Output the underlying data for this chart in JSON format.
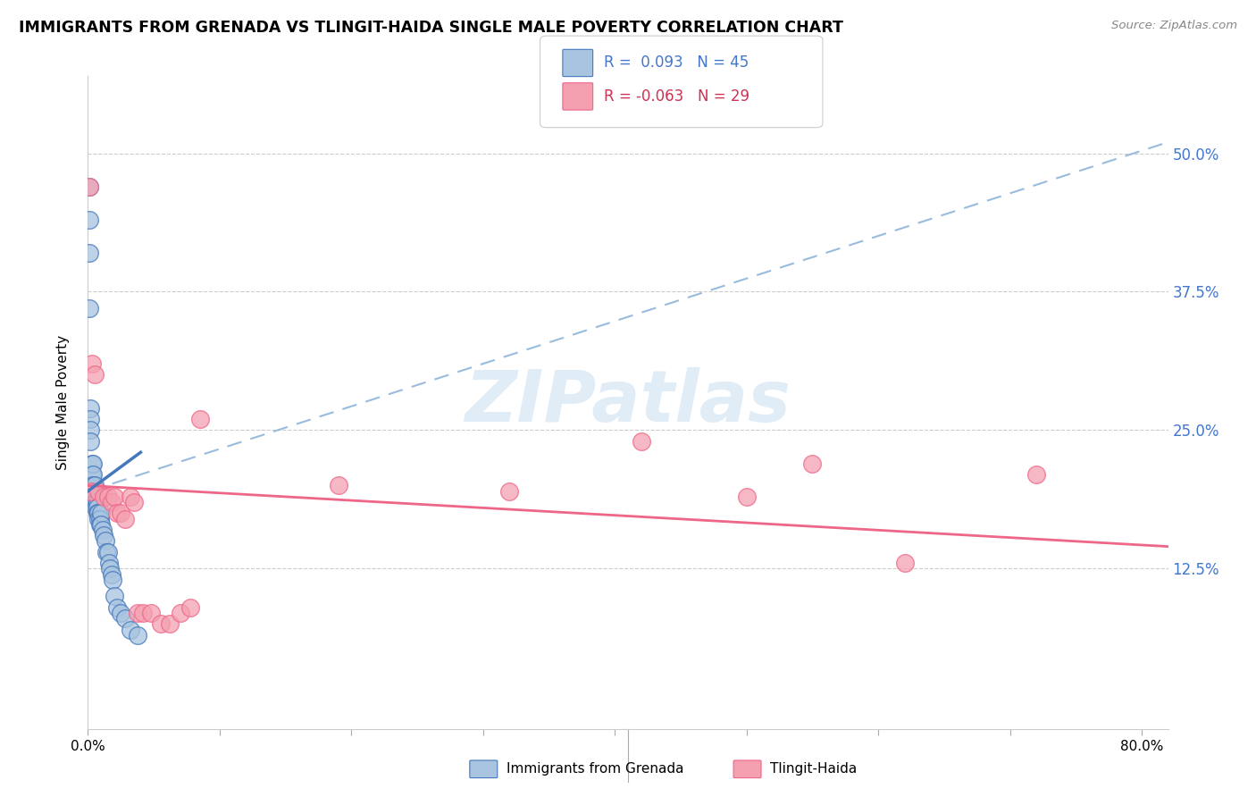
{
  "title": "IMMIGRANTS FROM GRENADA VS TLINGIT-HAIDA SINGLE MALE POVERTY CORRELATION CHART",
  "source": "Source: ZipAtlas.com",
  "ylabel": "Single Male Poverty",
  "legend_label1": "Immigrants from Grenada",
  "legend_label2": "Tlingit-Haida",
  "r1": "0.093",
  "n1": "45",
  "r2": "-0.063",
  "n2": "29",
  "yticks": [
    "12.5%",
    "25.0%",
    "37.5%",
    "50.0%"
  ],
  "ytick_vals": [
    0.125,
    0.25,
    0.375,
    0.5
  ],
  "color_blue": "#a8c4e0",
  "color_pink": "#f4a0b0",
  "color_blue_line": "#4477bb",
  "color_pink_line": "#ee6688",
  "color_blue_text": "#4477cc",
  "color_pink_text": "#cc3355",
  "color_dash": "#99bbdd",
  "blue_points_x": [
    0.001,
    0.001,
    0.001,
    0.001,
    0.002,
    0.002,
    0.002,
    0.002,
    0.003,
    0.003,
    0.003,
    0.003,
    0.004,
    0.004,
    0.004,
    0.004,
    0.005,
    0.005,
    0.005,
    0.006,
    0.006,
    0.007,
    0.007,
    0.007,
    0.008,
    0.008,
    0.009,
    0.009,
    0.01,
    0.01,
    0.011,
    0.012,
    0.013,
    0.014,
    0.015,
    0.016,
    0.017,
    0.018,
    0.019,
    0.02,
    0.022,
    0.025,
    0.028,
    0.032,
    0.038
  ],
  "blue_points_y": [
    0.47,
    0.44,
    0.41,
    0.36,
    0.27,
    0.26,
    0.25,
    0.24,
    0.22,
    0.21,
    0.2,
    0.19,
    0.22,
    0.21,
    0.2,
    0.195,
    0.2,
    0.19,
    0.185,
    0.185,
    0.18,
    0.185,
    0.18,
    0.175,
    0.175,
    0.17,
    0.17,
    0.165,
    0.175,
    0.165,
    0.16,
    0.155,
    0.15,
    0.14,
    0.14,
    0.13,
    0.125,
    0.12,
    0.115,
    0.1,
    0.09,
    0.085,
    0.08,
    0.07,
    0.065
  ],
  "pink_points_x": [
    0.001,
    0.002,
    0.003,
    0.005,
    0.008,
    0.012,
    0.015,
    0.018,
    0.02,
    0.022,
    0.025,
    0.028,
    0.032,
    0.035,
    0.038,
    0.042,
    0.048,
    0.055,
    0.062,
    0.07,
    0.078,
    0.085,
    0.19,
    0.32,
    0.42,
    0.5,
    0.55,
    0.62,
    0.72
  ],
  "pink_points_y": [
    0.47,
    0.195,
    0.31,
    0.3,
    0.195,
    0.19,
    0.19,
    0.185,
    0.19,
    0.175,
    0.175,
    0.17,
    0.19,
    0.185,
    0.085,
    0.085,
    0.085,
    0.075,
    0.075,
    0.085,
    0.09,
    0.26,
    0.2,
    0.195,
    0.24,
    0.19,
    0.22,
    0.13,
    0.21
  ],
  "xlim": [
    0.0,
    0.82
  ],
  "ylim": [
    -0.02,
    0.57
  ],
  "blue_trendline_x": [
    0.0,
    0.04
  ],
  "blue_trendline_y": [
    0.195,
    0.23
  ],
  "dash_line_x": [
    0.001,
    0.82
  ],
  "dash_line_y": [
    0.195,
    0.51
  ],
  "pink_trendline_x": [
    0.0,
    0.82
  ],
  "pink_trendline_y": [
    0.2,
    0.145
  ],
  "watermark": "ZIPatlas",
  "watermark_color": "#c8ddf0",
  "background_color": "#ffffff"
}
